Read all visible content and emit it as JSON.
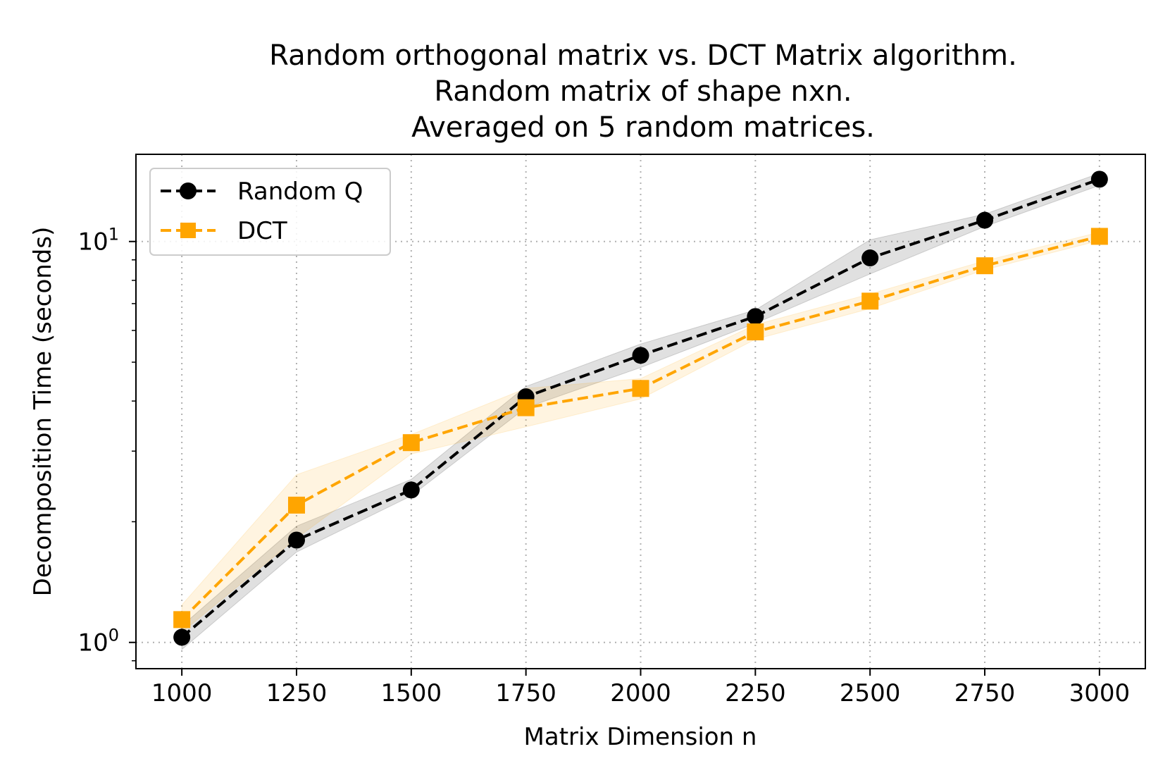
{
  "chart_data": {
    "type": "line",
    "title": [
      "Random orthogonal matrix vs. DCT Matrix algorithm.",
      "Random matrix of shape nxn.",
      "Averaged on 5 random matrices."
    ],
    "xlabel": "Matrix Dimension n",
    "ylabel": "Decomposition Time (seconds)",
    "yscale": "log",
    "xlim": [
      900,
      3100
    ],
    "ylim": [
      0.86,
      16.5
    ],
    "x": [
      1000,
      1250,
      1500,
      1750,
      2000,
      2250,
      2500,
      2750,
      3000
    ],
    "x_tick_labels": [
      "1000",
      "1250",
      "1500",
      "1750",
      "2000",
      "2250",
      "2500",
      "2750",
      "3000"
    ],
    "y_major_ticks": [
      {
        "value": 1,
        "base": "10",
        "exp": "0"
      },
      {
        "value": 10,
        "base": "10",
        "exp": "1"
      }
    ],
    "y_minor_ticks": [
      0.9,
      2,
      3,
      4,
      5,
      6,
      7,
      8,
      9
    ],
    "grid": true,
    "legend_position": "upper-left",
    "series": [
      {
        "name": "Random Q",
        "color": "#000000",
        "marker": "circle",
        "line_style": "dashed",
        "values": [
          1.03,
          1.8,
          2.4,
          4.1,
          5.2,
          6.5,
          9.1,
          11.3,
          14.3
        ],
        "band_low": [
          0.96,
          1.68,
          2.32,
          3.85,
          4.85,
          6.25,
          8.3,
          10.9,
          13.8
        ],
        "band_high": [
          1.1,
          1.95,
          2.55,
          4.35,
          5.55,
          6.75,
          10.1,
          11.7,
          14.8
        ]
      },
      {
        "name": "DCT",
        "color": "#ffa500",
        "marker": "square",
        "line_style": "dashed",
        "values": [
          1.14,
          2.2,
          3.15,
          3.85,
          4.3,
          5.95,
          7.1,
          8.7,
          10.3
        ],
        "band_low": [
          1.06,
          1.82,
          2.95,
          3.45,
          4.05,
          5.7,
          6.8,
          8.5,
          10.05
        ],
        "band_high": [
          1.24,
          2.62,
          3.3,
          4.3,
          4.55,
          6.2,
          7.4,
          8.95,
          10.55
        ]
      }
    ]
  }
}
